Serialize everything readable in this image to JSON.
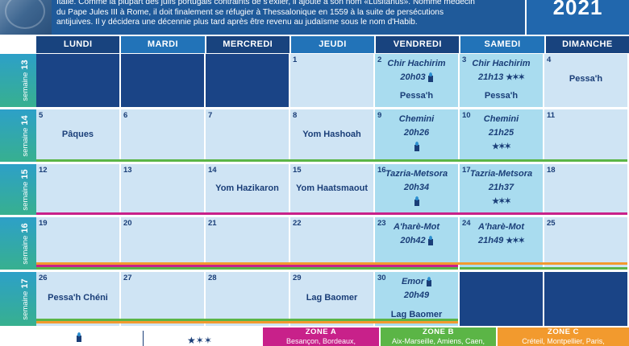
{
  "header": {
    "intro_lines": [
      "Italie. Comme la plupart des juifs portugais contraints de s'exiler, il ajoute à son nom «Lusitanus». Nommé médecin",
      "du Pape Jules III à Rome, il doit finalement se réfugier à Thessalonique en 1559 à la suite de persécutions",
      "antijuives. Il y décidera une décennie plus tard après être revenu au judaïsme sous le nom d'Habib."
    ],
    "year": "2021"
  },
  "days": [
    "LUNDI",
    "MARDI",
    "MERCREDI",
    "JEUDI",
    "VENDREDI",
    "SAMEDI",
    "DIMANCHE"
  ],
  "week_prefix": "semaine",
  "weeks": [
    {
      "number": "13",
      "cells": [
        {
          "num": "",
          "style": "dark",
          "lines": []
        },
        {
          "num": "",
          "style": "dark",
          "lines": []
        },
        {
          "num": "",
          "style": "dark",
          "lines": []
        },
        {
          "num": "1",
          "style": "light",
          "lines": []
        },
        {
          "num": "2",
          "style": "cyan",
          "lines": [
            {
              "text": "Chir Hachirim",
              "kind": "parasha"
            },
            {
              "text": "20h03",
              "kind": "time",
              "candle": true
            },
            {
              "text": "Pessa'h",
              "kind": "event"
            }
          ]
        },
        {
          "num": "3",
          "style": "cyan",
          "lines": [
            {
              "text": "Chir Hachirim",
              "kind": "parasha"
            },
            {
              "text": "21h13",
              "kind": "time",
              "stars": "★✶✶"
            },
            {
              "text": "Pessa'h",
              "kind": "event"
            }
          ]
        },
        {
          "num": "4",
          "style": "light",
          "lines": [
            {
              "text": "Pessa'h",
              "kind": "event"
            }
          ]
        }
      ]
    },
    {
      "number": "14",
      "cells": [
        {
          "num": "5",
          "style": "light",
          "lines": [
            {
              "text": "Pâques",
              "kind": "event"
            }
          ]
        },
        {
          "num": "6",
          "style": "light",
          "lines": []
        },
        {
          "num": "7",
          "style": "light",
          "lines": []
        },
        {
          "num": "8",
          "style": "light",
          "lines": [
            {
              "text": "Yom Hashoah",
              "kind": "event"
            }
          ]
        },
        {
          "num": "9",
          "style": "cyan",
          "lines": [
            {
              "text": "Chemini",
              "kind": "parasha"
            },
            {
              "text": "20h26",
              "kind": "time"
            },
            {
              "text": "",
              "kind": "candle"
            }
          ]
        },
        {
          "num": "10",
          "style": "cyan",
          "lines": [
            {
              "text": "Chemini",
              "kind": "parasha"
            },
            {
              "text": "21h25",
              "kind": "time"
            },
            {
              "text": "★✶✶",
              "kind": "stars"
            }
          ]
        },
        {
          "num": "11",
          "style": "light",
          "lines": []
        }
      ]
    },
    {
      "number": "15",
      "cells": [
        {
          "num": "12",
          "style": "light",
          "lines": []
        },
        {
          "num": "13",
          "style": "light",
          "lines": []
        },
        {
          "num": "14",
          "style": "light",
          "lines": [
            {
              "text": "Yom Hazikaron",
              "kind": "event"
            }
          ]
        },
        {
          "num": "15",
          "style": "light",
          "lines": [
            {
              "text": "Yom Haatsmaout",
              "kind": "event"
            }
          ]
        },
        {
          "num": "16",
          "style": "cyan",
          "lines": [
            {
              "text": "Tazria-Metsora",
              "kind": "parasha"
            },
            {
              "text": "20h34",
              "kind": "time"
            },
            {
              "text": "",
              "kind": "candle"
            }
          ]
        },
        {
          "num": "17",
          "style": "cyan",
          "lines": [
            {
              "text": "Tazria-Metsora",
              "kind": "parasha"
            },
            {
              "text": "21h37",
              "kind": "time"
            },
            {
              "text": "★✶✶",
              "kind": "stars"
            }
          ]
        },
        {
          "num": "18",
          "style": "light",
          "lines": []
        }
      ]
    },
    {
      "number": "16",
      "cells": [
        {
          "num": "19",
          "style": "light",
          "lines": []
        },
        {
          "num": "20",
          "style": "light",
          "lines": []
        },
        {
          "num": "21",
          "style": "light",
          "lines": []
        },
        {
          "num": "22",
          "style": "light",
          "lines": []
        },
        {
          "num": "23",
          "style": "cyan",
          "lines": [
            {
              "text": "A'harè-Mot",
              "kind": "parasha"
            },
            {
              "text": "20h42",
              "kind": "time",
              "candle": true
            }
          ]
        },
        {
          "num": "24",
          "style": "cyan",
          "lines": [
            {
              "text": "A'harè-Mot",
              "kind": "parasha"
            },
            {
              "text": "21h49",
              "kind": "time",
              "stars": "★✶✶"
            }
          ]
        },
        {
          "num": "25",
          "style": "light",
          "lines": []
        }
      ]
    },
    {
      "number": "17",
      "cells": [
        {
          "num": "26",
          "style": "light",
          "lines": [
            {
              "text": "Pessa'h Chéni",
              "kind": "event"
            }
          ]
        },
        {
          "num": "27",
          "style": "light",
          "lines": []
        },
        {
          "num": "28",
          "style": "light",
          "lines": []
        },
        {
          "num": "29",
          "style": "light",
          "lines": [
            {
              "text": "Lag Baomer",
              "kind": "event"
            }
          ]
        },
        {
          "num": "30",
          "style": "cyan",
          "lines": [
            {
              "text": "Emor",
              "kind": "parasha",
              "candle": true
            },
            {
              "text": "20h49",
              "kind": "time"
            },
            {
              "text": "Lag Baomer",
              "kind": "event"
            }
          ]
        },
        {
          "num": "",
          "style": "dark",
          "lines": []
        },
        {
          "num": "",
          "style": "dark",
          "lines": []
        }
      ]
    }
  ],
  "legend": {
    "stars": "★✶✶",
    "zones": [
      {
        "title": "ZONE A",
        "cities": "Besançon, Bordeaux,",
        "color": "#c8218a"
      },
      {
        "title": "ZONE B",
        "cities": "Aix-Marseille, Amiens, Caen,",
        "color": "#5bb546"
      },
      {
        "title": "ZONE C",
        "cities": "Créteil, Montpellier, Paris,",
        "color": "#f29a2e"
      }
    ]
  },
  "colors": {
    "header_blue": "#1f5a9a",
    "day_dark": "#18437e",
    "day_mid": "#2273b8",
    "cell_light": "#cfe4f4",
    "cell_cyan": "#a9dcef",
    "cell_dark": "#1a4486",
    "text_navy": "#1a3e78"
  }
}
